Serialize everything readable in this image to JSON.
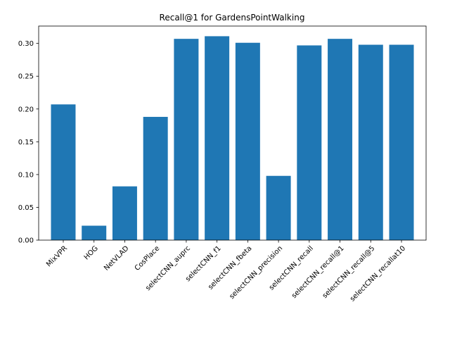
{
  "chart_data": {
    "type": "bar",
    "title": "Recall@1 for GardensPointWalking",
    "xlabel": "",
    "ylabel": "",
    "categories": [
      "MixVPR",
      "HOG",
      "NetVLAD",
      "CosPlace",
      "selectCNN_auprc",
      "selectCNN_f1",
      "selectCNN_fbeta",
      "selectCNN_precision",
      "selectCNN_recall",
      "selectCNN_recall@1",
      "selectCNN_recall@5",
      "selectCNN_recallat10"
    ],
    "values": [
      0.207,
      0.022,
      0.082,
      0.188,
      0.307,
      0.311,
      0.301,
      0.098,
      0.297,
      0.307,
      0.298,
      0.298
    ],
    "ylim": [
      0,
      0.3265
    ],
    "yticks": [
      "0.00",
      "0.05",
      "0.10",
      "0.15",
      "0.20",
      "0.25",
      "0.30"
    ],
    "ytick_values": [
      0,
      0.05,
      0.1,
      0.15,
      0.2,
      0.25,
      0.3
    ],
    "grid": false,
    "bar_color": "#1f77b4",
    "xtick_rotation": "45 degrees"
  }
}
